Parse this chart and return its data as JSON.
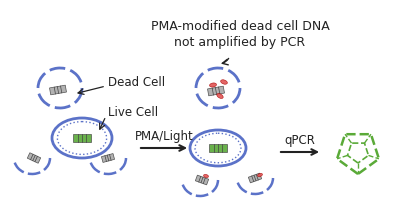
{
  "bg_color": "#ffffff",
  "title_line1": "PMA-modified dead cell DNA",
  "title_line2": "not amplified by PCR",
  "label_dead": "Dead Cell",
  "label_live": "Live Cell",
  "label_step1": "PMA/Light",
  "label_step2": "qPCR",
  "blue": "#5b72c8",
  "green": "#5aaa38",
  "red": "#e05555",
  "gray": "#999999",
  "black": "#222222",
  "fig_width": 4.0,
  "fig_height": 2.02,
  "dpi": 100
}
